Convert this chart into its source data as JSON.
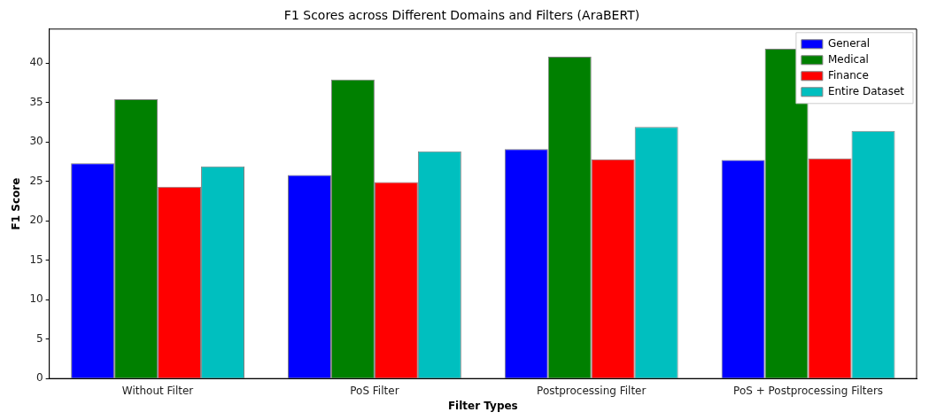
{
  "chart_data": {
    "type": "bar",
    "title": "F1 Scores across Different Domains and Filters (AraBERT)",
    "xlabel": "Filter Types",
    "ylabel": "F1 Score",
    "categories": [
      "Without Filter",
      "PoS Filter",
      "Postprocessing Filter",
      "PoS + Postprocessing Filters"
    ],
    "series": [
      {
        "name": "General",
        "color": "#0000ff",
        "values": [
          27.3,
          25.8,
          29.1,
          27.7
        ]
      },
      {
        "name": "Medical",
        "color": "#008000",
        "values": [
          35.4,
          37.9,
          40.8,
          41.8
        ]
      },
      {
        "name": "Finance",
        "color": "#ff0000",
        "values": [
          24.3,
          24.9,
          27.8,
          27.9
        ]
      },
      {
        "name": "Entire Dataset",
        "color": "#00bfbf",
        "values": [
          26.9,
          28.8,
          31.9,
          31.4
        ]
      }
    ],
    "ylim": [
      0,
      44.3
    ],
    "yticks": [
      0,
      5,
      10,
      15,
      20,
      25,
      30,
      35,
      40
    ],
    "grid": false,
    "legend": "top right"
  }
}
